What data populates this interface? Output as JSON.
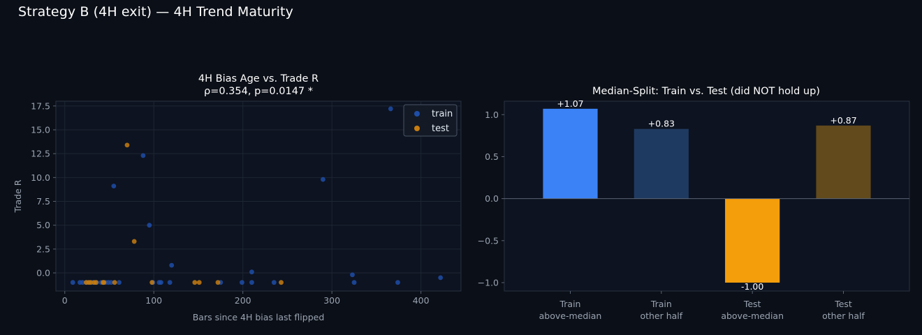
{
  "title": "Strategy B (4H exit) — 4H Trend Maturity",
  "colors": {
    "background": "#0b0f17",
    "train": "#1f4ea8",
    "test": "#c77d10",
    "grid": "#1e2633",
    "axis": "#2a3342"
  },
  "chart_data": [
    {
      "type": "scatter",
      "title": "4H Bias Age vs. Trade R",
      "subtitle": "ρ=0.354, p=0.0147 *",
      "xlabel": "Bars since 4H bias last flipped",
      "ylabel": "Trade R",
      "xlim": [
        -10,
        445
      ],
      "ylim": [
        -1.9,
        18.0
      ],
      "xticks": [
        0,
        100,
        200,
        300,
        400
      ],
      "xtick_labels": [
        "0",
        "100",
        "200",
        "300",
        "400"
      ],
      "yticks": [
        0,
        2.5,
        5,
        7.5,
        10,
        12.5,
        15,
        17.5
      ],
      "ytick_labels": [
        "0.0",
        "2.5",
        "5.0",
        "7.5",
        "10.0",
        "12.5",
        "15.0",
        "17.5"
      ],
      "grid": true,
      "legend_position": "top-right",
      "series": [
        {
          "name": "train",
          "color": "#1f4ea8",
          "points": [
            [
              9,
              -1
            ],
            [
              17,
              -1
            ],
            [
              20,
              -1
            ],
            [
              25,
              -1
            ],
            [
              31,
              -1
            ],
            [
              36,
              -1
            ],
            [
              41,
              -1
            ],
            [
              46,
              -1
            ],
            [
              49,
              -1
            ],
            [
              52,
              -1
            ],
            [
              55,
              9.1
            ],
            [
              61,
              -1
            ],
            [
              88,
              12.3
            ],
            [
              95,
              5.0
            ],
            [
              99,
              -1
            ],
            [
              106,
              -1
            ],
            [
              108,
              -1
            ],
            [
              118,
              -1
            ],
            [
              120,
              0.8
            ],
            [
              175,
              -1
            ],
            [
              199,
              -1
            ],
            [
              210,
              0.1
            ],
            [
              210,
              -1
            ],
            [
              235,
              -1
            ],
            [
              290,
              9.8
            ],
            [
              323,
              -0.2
            ],
            [
              325,
              -1
            ],
            [
              366,
              17.2
            ],
            [
              374,
              -1
            ],
            [
              422,
              -0.5
            ]
          ]
        },
        {
          "name": "test",
          "color": "#c77d10",
          "points": [
            [
              24,
              -1
            ],
            [
              27,
              -1
            ],
            [
              29,
              -1
            ],
            [
              33,
              -1
            ],
            [
              35,
              -1
            ],
            [
              43,
              -1
            ],
            [
              44,
              -1
            ],
            [
              56,
              -1
            ],
            [
              70,
              13.4
            ],
            [
              78,
              3.3
            ],
            [
              98,
              -1
            ],
            [
              146,
              -1
            ],
            [
              151,
              -1
            ],
            [
              172,
              -1
            ],
            [
              243,
              -1
            ]
          ]
        }
      ]
    },
    {
      "type": "bar",
      "title": "Median-Split: Train vs. Test (did NOT hold up)",
      "categories": [
        "Train\nabove-median",
        "Train\nother half",
        "Test\nabove-median",
        "Test\nother half"
      ],
      "category_lines": [
        [
          "Train",
          "above-median"
        ],
        [
          "Train",
          "other half"
        ],
        [
          "Test",
          "above-median"
        ],
        [
          "Test",
          "other half"
        ]
      ],
      "values": [
        1.07,
        0.83,
        -1.0,
        0.87
      ],
      "value_labels": [
        "+1.07",
        "+0.83",
        "-1.00",
        "+0.87"
      ],
      "bar_colors": [
        "#3b82f6",
        "#1f3a60",
        "#f59e0b",
        "#624a1c"
      ],
      "ylim": [
        -1.1,
        1.16
      ],
      "yticks": [
        -1.0,
        -0.5,
        0.0,
        0.5,
        1.0
      ],
      "ytick_labels": [
        "−1.0",
        "−0.5",
        "0.0",
        "0.5",
        "1.0"
      ],
      "zero_line": true,
      "grid": false
    }
  ]
}
